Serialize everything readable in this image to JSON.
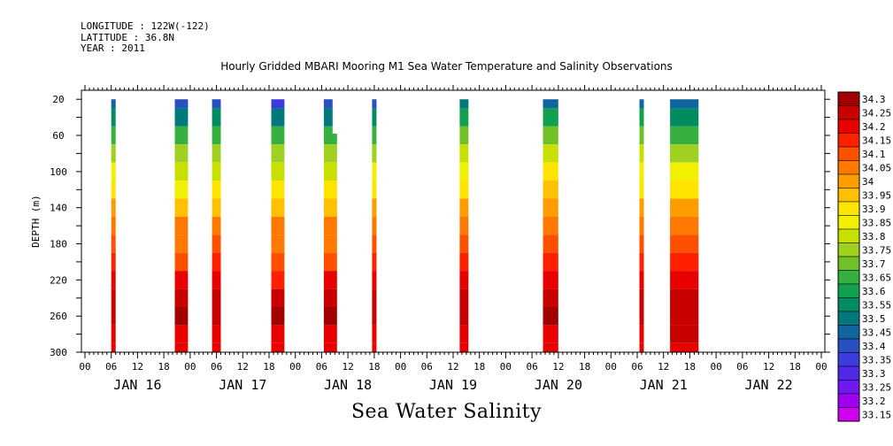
{
  "meta": {
    "longitude": "LONGITUDE : 122W(-122)",
    "latitude": "LATITUDE : 36.8N",
    "year": "YEAR : 2011"
  },
  "title": "Hourly Gridded MBARI Mooring M1 Sea Water Temperature and Salinity Observations",
  "bottom_title": "Sea Water Salinity",
  "chart_data": {
    "type": "heatmap",
    "title": "Hourly Gridded MBARI Mooring M1 Sea Water Temperature and Salinity Observations",
    "xlabel": "",
    "ylabel": "DEPTH (m)",
    "x_unit": "hours since JAN 16 2011 00:00",
    "xlim": [
      0,
      168
    ],
    "ylim": [
      300,
      10
    ],
    "y_ticks": [
      20,
      60,
      100,
      140,
      180,
      220,
      260,
      300
    ],
    "x_tick_labels": [
      "00",
      "06",
      "12",
      "18",
      "00",
      "06",
      "12",
      "18",
      "00",
      "06",
      "12",
      "18",
      "00",
      "06",
      "12",
      "18",
      "00",
      "06",
      "12",
      "18",
      "00",
      "06",
      "12",
      "18",
      "00",
      "06",
      "12",
      "18",
      "00"
    ],
    "day_labels": [
      "JAN 16",
      "JAN 17",
      "JAN 18",
      "JAN 19",
      "JAN 20",
      "JAN 21",
      "JAN 22"
    ],
    "colorbar": {
      "levels": [
        "34.3",
        "34.25",
        "34.2",
        "34.15",
        "34.1",
        "34.05",
        "34",
        "33.95",
        "33.9",
        "33.85",
        "33.8",
        "33.75",
        "33.7",
        "33.65",
        "33.6",
        "33.55",
        "33.5",
        "33.45",
        "33.4",
        "33.35",
        "33.3",
        "33.25",
        "33.2",
        "33.15"
      ],
      "colors": [
        "#a00000",
        "#c80000",
        "#e80000",
        "#ff2000",
        "#ff5000",
        "#ff7800",
        "#ff9c00",
        "#ffc000",
        "#ffe400",
        "#f0f000",
        "#c8e000",
        "#a0d020",
        "#70c028",
        "#38b040",
        "#10a050",
        "#008c60",
        "#00787c",
        "#1064a0",
        "#2850c0",
        "#3c3cdc",
        "#5028e8",
        "#7018f0",
        "#a000f0",
        "#d000f0"
      ]
    },
    "columns": [
      {
        "x_start": 6.0,
        "x_end": 7.0,
        "profile": [
          [
            "20",
            33.43
          ],
          [
            "40",
            33.55
          ],
          [
            "60",
            33.67
          ],
          [
            "80",
            33.77
          ],
          [
            "100",
            33.84
          ],
          [
            "120",
            33.9
          ],
          [
            "140",
            33.98
          ],
          [
            "160",
            34.06
          ],
          [
            "180",
            34.1
          ],
          [
            "200",
            34.14
          ],
          [
            "220",
            34.18
          ],
          [
            "240",
            34.25
          ],
          [
            "260",
            34.27
          ],
          [
            "280",
            34.22
          ],
          [
            "300",
            34.2
          ]
        ]
      },
      {
        "x_start": 20.5,
        "x_end": 23.5,
        "profile": [
          [
            "20",
            33.38
          ],
          [
            "40",
            33.52
          ],
          [
            "60",
            33.64
          ],
          [
            "80",
            33.73
          ],
          [
            "100",
            33.8
          ],
          [
            "120",
            33.87
          ],
          [
            "140",
            33.96
          ],
          [
            "160",
            34.04
          ],
          [
            "180",
            34.07
          ],
          [
            "200",
            34.12
          ],
          [
            "220",
            34.18
          ],
          [
            "240",
            34.26
          ],
          [
            "260",
            34.28
          ],
          [
            "280",
            34.22
          ],
          [
            "300",
            34.2
          ]
        ]
      },
      {
        "x_start": 29.0,
        "x_end": 31.0,
        "profile": [
          [
            "20",
            33.4
          ],
          [
            "40",
            33.55
          ],
          [
            "60",
            33.66
          ],
          [
            "80",
            33.75
          ],
          [
            "100",
            33.82
          ],
          [
            "120",
            33.88
          ],
          [
            "140",
            33.96
          ],
          [
            "160",
            34.06
          ],
          [
            "180",
            34.09
          ],
          [
            "200",
            34.13
          ],
          [
            "220",
            34.18
          ],
          [
            "240",
            34.26
          ],
          [
            "260",
            34.27
          ],
          [
            "280",
            34.22
          ],
          [
            "300",
            34.2
          ]
        ]
      },
      {
        "x_start": 42.5,
        "x_end": 45.5,
        "profile": [
          [
            "20",
            33.36
          ],
          [
            "40",
            33.5
          ],
          [
            "60",
            33.63
          ],
          [
            "80",
            33.73
          ],
          [
            "100",
            33.8
          ],
          [
            "120",
            33.88
          ],
          [
            "140",
            33.95
          ],
          [
            "160",
            34.04
          ],
          [
            "180",
            34.07
          ],
          [
            "200",
            34.12
          ],
          [
            "220",
            34.17
          ],
          [
            "240",
            34.26
          ],
          [
            "260",
            34.28
          ],
          [
            "280",
            34.22
          ],
          [
            "300",
            34.2
          ]
        ]
      },
      {
        "x_start": 54.5,
        "x_end": 57.5,
        "profile": [
          [
            "20",
            33.4
          ],
          [
            "40",
            33.52
          ],
          [
            "60",
            33.64
          ],
          [
            "80",
            33.75
          ],
          [
            "100",
            33.82
          ],
          [
            "120",
            33.88
          ],
          [
            "140",
            33.96
          ],
          [
            "160",
            34.04
          ],
          [
            "180",
            34.07
          ],
          [
            "200",
            34.12
          ],
          [
            "220",
            34.18
          ],
          [
            "240",
            34.26
          ],
          [
            "260",
            34.28
          ],
          [
            "280",
            34.22
          ],
          [
            "300",
            34.2
          ]
        ],
        "top_step": {
          "x_from": 56.5,
          "depth": 58
        }
      },
      {
        "x_start": 65.5,
        "x_end": 66.5,
        "profile": [
          [
            "20",
            33.4
          ],
          [
            "40",
            33.55
          ],
          [
            "60",
            33.67
          ],
          [
            "80",
            33.76
          ],
          [
            "100",
            33.83
          ],
          [
            "120",
            33.9
          ],
          [
            "140",
            33.98
          ],
          [
            "160",
            34.06
          ],
          [
            "180",
            34.1
          ],
          [
            "200",
            34.14
          ],
          [
            "220",
            34.18
          ],
          [
            "240",
            34.25
          ],
          [
            "260",
            34.27
          ],
          [
            "280",
            34.22
          ],
          [
            "300",
            34.2
          ]
        ]
      },
      {
        "x_start": 85.5,
        "x_end": 87.5,
        "profile": [
          [
            "20",
            33.48
          ],
          [
            "40",
            33.6
          ],
          [
            "60",
            33.7
          ],
          [
            "80",
            33.78
          ],
          [
            "100",
            33.84
          ],
          [
            "120",
            33.9
          ],
          [
            "140",
            33.99
          ],
          [
            "160",
            34.06
          ],
          [
            "180",
            34.1
          ],
          [
            "200",
            34.14
          ],
          [
            "220",
            34.18
          ],
          [
            "240",
            34.25
          ],
          [
            "260",
            34.27
          ],
          [
            "280",
            34.22
          ],
          [
            "300",
            34.2
          ]
        ]
      },
      {
        "x_start": 104.5,
        "x_end": 108.0,
        "profile": [
          [
            "20",
            33.47
          ],
          [
            "40",
            33.6
          ],
          [
            "60",
            33.7
          ],
          [
            "80",
            33.8
          ],
          [
            "100",
            33.88
          ],
          [
            "120",
            33.93
          ],
          [
            "140",
            34.02
          ],
          [
            "160",
            34.07
          ],
          [
            "180",
            34.1
          ],
          [
            "200",
            34.14
          ],
          [
            "220",
            34.18
          ],
          [
            "240",
            34.26
          ],
          [
            "260",
            34.28
          ],
          [
            "280",
            34.22
          ],
          [
            "300",
            34.2
          ]
        ]
      },
      {
        "x_start": 126.5,
        "x_end": 127.5,
        "profile": [
          [
            "20",
            33.43
          ],
          [
            "40",
            33.58
          ],
          [
            "60",
            33.7
          ],
          [
            "80",
            33.8
          ],
          [
            "100",
            33.86
          ],
          [
            "120",
            33.92
          ],
          [
            "140",
            34.0
          ],
          [
            "160",
            34.06
          ],
          [
            "180",
            34.09
          ],
          [
            "200",
            34.13
          ],
          [
            "220",
            34.18
          ],
          [
            "240",
            34.25
          ],
          [
            "260",
            34.27
          ],
          [
            "280",
            34.22
          ],
          [
            "300",
            34.2
          ]
        ]
      },
      {
        "x_start": 133.5,
        "x_end": 140.0,
        "profile": [
          [
            "20",
            33.45
          ],
          [
            "40",
            33.56
          ],
          [
            "60",
            33.66
          ],
          [
            "80",
            33.75
          ],
          [
            "100",
            33.84
          ],
          [
            "120",
            33.9
          ],
          [
            "140",
            33.98
          ],
          [
            "160",
            34.06
          ],
          [
            "180",
            34.1
          ],
          [
            "200",
            34.14
          ],
          [
            "220",
            34.18
          ],
          [
            "240",
            34.24
          ],
          [
            "260",
            34.27
          ],
          [
            "280",
            34.23
          ],
          [
            "300",
            34.2
          ]
        ]
      }
    ]
  }
}
